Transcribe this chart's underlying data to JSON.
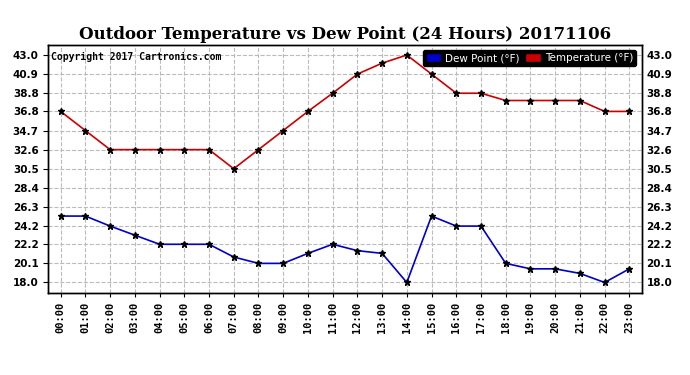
{
  "title": "Outdoor Temperature vs Dew Point (24 Hours) 20171106",
  "copyright_text": "Copyright 2017 Cartronics.com",
  "hours": [
    "00:00",
    "01:00",
    "02:00",
    "03:00",
    "04:00",
    "05:00",
    "06:00",
    "07:00",
    "08:00",
    "09:00",
    "10:00",
    "11:00",
    "12:00",
    "13:00",
    "14:00",
    "15:00",
    "16:00",
    "17:00",
    "18:00",
    "19:00",
    "20:00",
    "21:00",
    "22:00",
    "23:00"
  ],
  "temperature": [
    36.8,
    34.7,
    32.6,
    32.6,
    32.6,
    32.6,
    32.6,
    30.5,
    32.6,
    34.7,
    36.8,
    38.8,
    40.9,
    42.1,
    43.0,
    40.9,
    38.8,
    38.8,
    38.0,
    38.0,
    38.0,
    38.0,
    36.8,
    36.8
  ],
  "dew_point": [
    25.3,
    25.3,
    24.2,
    23.2,
    22.2,
    22.2,
    22.2,
    20.8,
    20.1,
    20.1,
    21.2,
    22.2,
    21.5,
    21.2,
    18.0,
    25.3,
    24.2,
    24.2,
    20.1,
    19.5,
    19.5,
    19.0,
    18.0,
    19.5
  ],
  "temp_color": "#cc0000",
  "dew_color": "#0000cc",
  "bg_color": "#ffffff",
  "plot_bg_color": "#ffffff",
  "grid_color": "#bbbbbb",
  "ylim_min": 16.9,
  "ylim_max": 44.1,
  "yticks": [
    18.0,
    20.1,
    22.2,
    24.2,
    26.3,
    28.4,
    30.5,
    32.6,
    34.7,
    36.8,
    38.8,
    40.9,
    43.0
  ],
  "legend_dew_label": "Dew Point (°F)",
  "legend_temp_label": "Temperature (°F)",
  "title_fontsize": 12,
  "copyright_fontsize": 7,
  "tick_fontsize": 7.5,
  "marker": "*",
  "marker_size": 5,
  "marker_color": "#000000",
  "line_width": 1.2
}
